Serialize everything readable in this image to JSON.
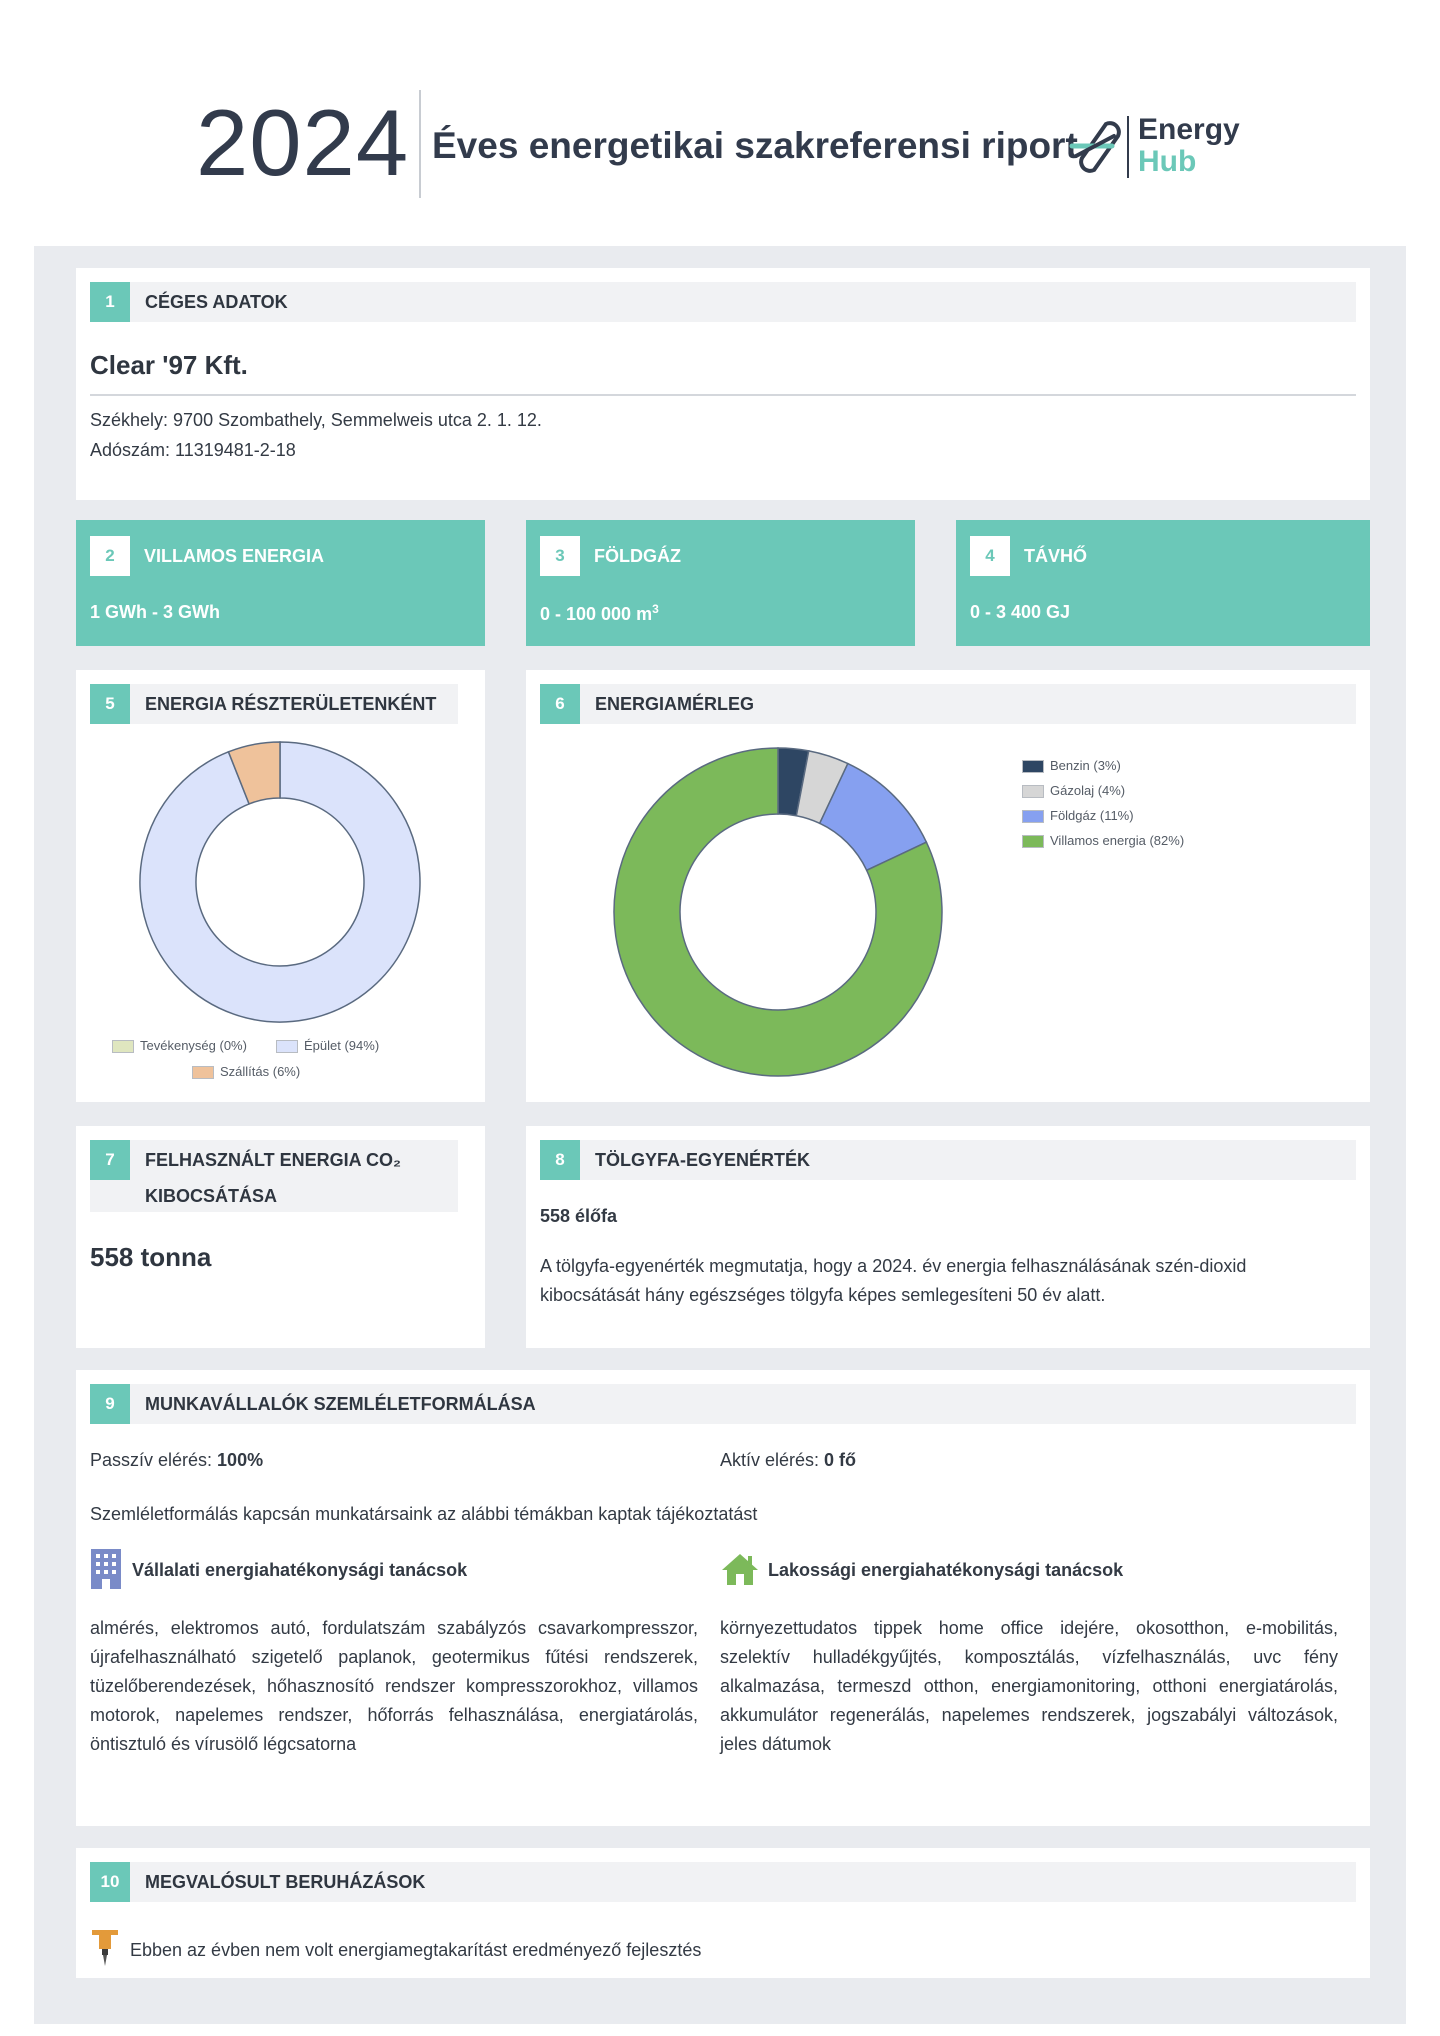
{
  "header": {
    "year": "2024",
    "title": "Éves energetikai szakreferensi riport",
    "logo_line1": "Energy",
    "logo_line2": "Hub"
  },
  "colors": {
    "accent": "#6bc8b8",
    "navy": "#323b4c",
    "frame": "#e9ebef"
  },
  "sections": {
    "company": {
      "num": "1",
      "title": "CÉGES ADATOK",
      "name": "Clear '97 Kft.",
      "address": "Székhely: 9700 Szombathely, Semmelweis utca 2. 1. 12.",
      "tax": "Adószám: 11319481-2-18"
    },
    "electricity": {
      "num": "2",
      "title": "VILLAMOS ENERGIA",
      "value": "1 GWh - 3 GWh"
    },
    "gas": {
      "num": "3",
      "title": "FÖLDGÁZ",
      "value": "0 - 100 000 m",
      "unit_sup": "3"
    },
    "district_heat": {
      "num": "4",
      "title": "TÁVHŐ",
      "value": "0 - 3 400 GJ"
    },
    "by_area": {
      "num": "5",
      "title": "ENERGIA RÉSZTERÜLETENKÉNT",
      "legend": [
        "Tevékenység (0%)",
        "Épület (94%)",
        "Szállítás (6%)"
      ]
    },
    "balance": {
      "num": "6",
      "title": "ENERGIAMÉRLEG",
      "legend": [
        "Benzin (3%)",
        "Gázolaj (4%)",
        "Földgáz (11%)",
        "Villamos energia (82%)"
      ]
    },
    "co2": {
      "num": "7",
      "title_line1": "FELHASZNÁLT ENERGIA CO₂",
      "title_line2": "KIBOCSÁTÁSA",
      "value": "558 tonna"
    },
    "oak": {
      "num": "8",
      "title": "TÖLGYFA-EGYENÉRTÉK",
      "value": "558 élőfa",
      "desc": "A tölgyfa-egyenérték megmutatja, hogy a 2024. év energia felhasználásának szén-dioxid kibocsátását hány egészséges tölgyfa képes semlegesíteni 50 év alatt."
    },
    "employees": {
      "num": "9",
      "title": "MUNKAVÁLLALÓK SZEMLÉLETFORMÁLÁSA",
      "passive_label": "Passzív elérés: ",
      "passive_value": "100%",
      "active_label": "Aktív elérés: ",
      "active_value": "0 fő",
      "intro": "Szemléletformálás kapcsán munkatársaink az alábbi témákban kaptak tájékoztatást",
      "corporate_title": "Vállalati energiahatékonysági tanácsok",
      "corporate_text": "almérés, elektromos autó, fordulatszám szabályzós csavarkompresszor, újrafelhasználható szigetelő paplanok, geotermikus fűtési rendszerek, tüzelőberendezések, hőhasznosító rendszer kompresszorokhoz, villamos motorok, napelemes rendszer, hőforrás felhasználása, energiatárolás, öntisztuló és vírusölő légcsatorna",
      "household_title": "Lakossági energiahatékonysági tanácsok",
      "household_text": "környezettudatos tippek home office idejére, okosotthon, e-mobilitás, szelektív hulladékgyűjtés, komposztálás, vízfelhasználás, uvc fény alkalmazása, termeszd otthon, energiamonitoring, otthoni energiatárolás, akkumulátor regenerálás, napelemes rendszerek, jogszabályi változások, jeles dátumok"
    },
    "investments": {
      "num": "10",
      "title": "MEGVALÓSULT BERUHÁZÁSOK",
      "text": "Ebben az évben nem volt energiamegtakarítást eredményező fejlesztés"
    }
  },
  "chart_data": [
    {
      "type": "pie",
      "categories": [
        "Tevékenység",
        "Épület",
        "Szállítás"
      ],
      "values": [
        0,
        94,
        6
      ],
      "colors": [
        "#dfe6bf",
        "#dbe3fb",
        "#efc29b"
      ],
      "legend": "bottom"
    },
    {
      "type": "pie",
      "categories": [
        "Benzin",
        "Gázolaj",
        "Földgáz",
        "Villamos energia"
      ],
      "values": [
        3,
        4,
        11,
        82
      ],
      "colors": [
        "#2e4663",
        "#d6d6d6",
        "#86a0f0",
        "#7cb95a"
      ],
      "legend": "top-right"
    }
  ]
}
